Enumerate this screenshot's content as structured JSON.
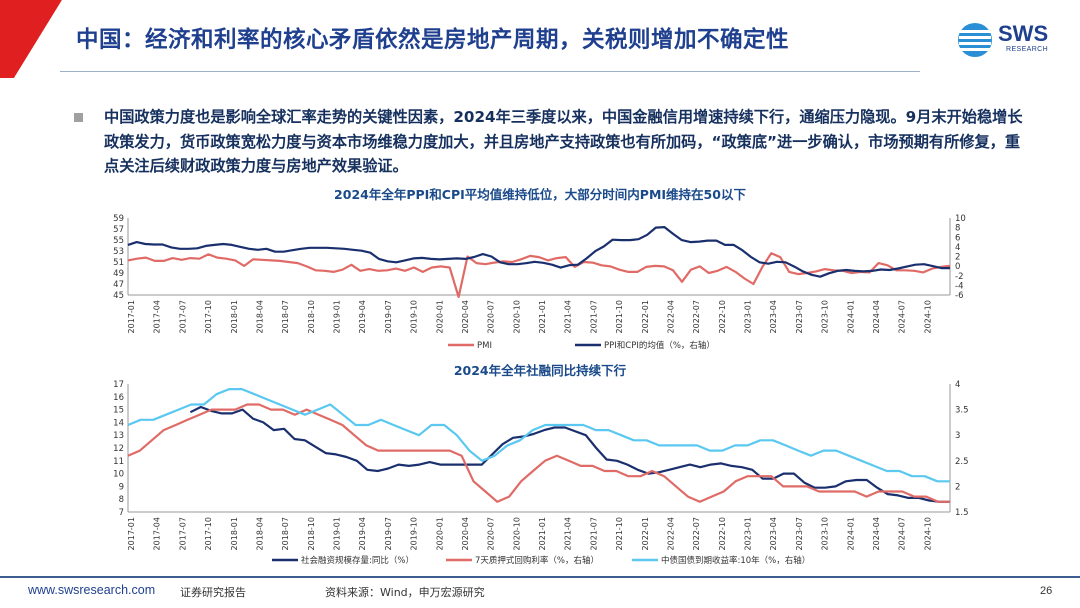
{
  "slide": {
    "title": "中国：经济和利率的核心矛盾依然是房地产周期，关税则增加不确定性",
    "logo_text": "SWS",
    "logo_sub": "RESEARCH",
    "paragraph": "中国政策力度也是影响全球汇率走势的关键性因素，2024年三季度以来，中国金融信用增速持续下行，通缩压力隐现。9月末开始稳增长政策发力，货币政策宽松力度与资本市场维稳力度加大，并且房地产支持政策也有所加码，“政策底”进一步确认，市场预期有所修复，重点关注后续财政政策力度与房地产效果验证。",
    "footer": {
      "url": "www.swsresearch.com",
      "doc_type": "证券研究报告",
      "source": "资料来源：Wind，申万宏源研究",
      "page": "26"
    },
    "colors": {
      "navy": "#1f3f8f",
      "red": "#e06b66",
      "darkblue": "#1a2f6e",
      "lightblue": "#5ac8f0"
    }
  },
  "chart_data": [
    {
      "type": "line",
      "title": "2024年全年PPI和CPI平均值维持低位，大部分时间内PMI维持在50以下",
      "x_labels": [
        "2017-01",
        "2017-04",
        "2017-07",
        "2017-10",
        "2018-01",
        "2018-04",
        "2018-07",
        "2018-10",
        "2019-01",
        "2019-04",
        "2019-07",
        "2019-10",
        "2020-01",
        "2020-04",
        "2020-07",
        "2020-10",
        "2021-01",
        "2021-04",
        "2021-07",
        "2021-10",
        "2022-01",
        "2022-04",
        "2022-07",
        "2022-10",
        "2023-01",
        "2023-04",
        "2023-07",
        "2023-10",
        "2024-01",
        "2024-04",
        "2024-07",
        "2024-10"
      ],
      "y_left": {
        "range": [
          45,
          59
        ],
        "ticks": [
          45,
          47,
          49,
          51,
          53,
          55,
          57,
          59
        ]
      },
      "y_right": {
        "range": [
          -6,
          10
        ],
        "ticks": [
          -6,
          -4,
          -2,
          0,
          2,
          4,
          6,
          8,
          10
        ]
      },
      "series": [
        {
          "name": "PMI",
          "axis": "left",
          "color": "#e06b66",
          "values": [
            51.3,
            51.6,
            51.8,
            51.2,
            51.2,
            51.7,
            51.4,
            51.7,
            51.6,
            52.4,
            51.8,
            51.6,
            51.3,
            50.3,
            51.5,
            51.4,
            51.3,
            51.2,
            51.0,
            50.8,
            50.2,
            49.5,
            49.4,
            49.2,
            49.6,
            50.5,
            49.4,
            49.7,
            49.4,
            49.5,
            49.8,
            49.4,
            50.0,
            49.2,
            50.0,
            50.2,
            50.0,
            35.7,
            52.0,
            50.8,
            50.6,
            50.9,
            51.1,
            51.0,
            51.5,
            52.1,
            51.9,
            51.3,
            51.7,
            51.9,
            50.1,
            51.0,
            50.9,
            50.4,
            50.2,
            49.6,
            49.2,
            49.2,
            50.1,
            50.3,
            50.2,
            49.5,
            47.4,
            49.6,
            50.2,
            49.0,
            49.4,
            50.1,
            49.2,
            48.0,
            47.0,
            50.1,
            52.6,
            51.9,
            49.2,
            48.8,
            49.0,
            49.3,
            49.7,
            49.5,
            49.4,
            49.0,
            49.2,
            49.1,
            50.8,
            50.4,
            49.5,
            49.5,
            49.4,
            49.1,
            49.8,
            50.1,
            50.3
          ]
        },
        {
          "name": "PPI和CPI的均值（%，右轴）",
          "axis": "right",
          "color": "#1a2f6e",
          "values": [
            4.4,
            5.0,
            4.6,
            4.5,
            4.5,
            3.9,
            3.6,
            3.6,
            3.7,
            4.2,
            4.4,
            4.6,
            4.4,
            4.0,
            3.6,
            3.4,
            3.6,
            3.0,
            3.0,
            3.3,
            3.6,
            3.8,
            3.8,
            3.8,
            3.7,
            3.6,
            3.4,
            3.2,
            2.8,
            1.5,
            1.0,
            0.8,
            1.2,
            1.6,
            1.7,
            1.5,
            1.4,
            1.5,
            1.6,
            1.5,
            1.9,
            2.5,
            2.0,
            0.8,
            0.4,
            0.4,
            0.6,
            0.9,
            0.7,
            0.3,
            -0.3,
            0.2,
            0.3,
            1.6,
            3.1,
            4.1,
            5.5,
            5.4,
            5.4,
            5.6,
            6.5,
            8.0,
            8.1,
            6.7,
            5.4,
            5.0,
            5.1,
            5.3,
            5.3,
            4.4,
            4.4,
            3.3,
            1.9,
            0.8,
            0.5,
            0.9,
            0.8,
            -0.1,
            -1.1,
            -1.8,
            -2.2,
            -1.5,
            -1.0,
            -0.8,
            -1.0,
            -1.1,
            -1.0,
            -0.7,
            -0.8,
            -0.5,
            -0.1,
            0.3,
            0.4,
            0.0,
            -0.4,
            -0.4
          ]
        }
      ],
      "legend": "bottom"
    },
    {
      "type": "line",
      "title": "2024年全年社融同比持续下行",
      "x_labels": [
        "2017-01",
        "2017-04",
        "2017-07",
        "2017-10",
        "2018-01",
        "2018-04",
        "2018-07",
        "2018-10",
        "2019-01",
        "2019-04",
        "2019-07",
        "2019-10",
        "2020-01",
        "2020-04",
        "2020-07",
        "2020-10",
        "2021-01",
        "2021-04",
        "2021-07",
        "2021-10",
        "2022-01",
        "2022-04",
        "2022-07",
        "2022-10",
        "2023-01",
        "2023-04",
        "2023-07",
        "2023-10",
        "2024-01",
        "2024-04",
        "2024-07",
        "2024-10"
      ],
      "y_left": {
        "range": [
          7,
          17
        ],
        "ticks": [
          7,
          8,
          9,
          10,
          11,
          12,
          13,
          14,
          15,
          16,
          17
        ]
      },
      "y_right": {
        "range": [
          1.5,
          4
        ],
        "ticks": [
          1.5,
          2,
          2.5,
          3,
          3.5,
          4
        ]
      },
      "series": [
        {
          "name": "社会融资规模存量:同比（%）",
          "axis": "left",
          "color": "#1a2f6e",
          "values": [
            null,
            null,
            null,
            null,
            null,
            null,
            14.8,
            15.2,
            14.9,
            14.7,
            14.7,
            15.0,
            14.3,
            14.0,
            13.4,
            13.5,
            12.7,
            12.6,
            12.1,
            11.6,
            11.5,
            11.3,
            11.0,
            10.3,
            10.2,
            10.4,
            10.7,
            10.6,
            10.7,
            10.9,
            10.7,
            10.7,
            10.7,
            10.7,
            10.7,
            11.5,
            12.3,
            12.8,
            12.9,
            13.1,
            13.4,
            13.6,
            13.6,
            13.3,
            13.0,
            12.0,
            11.1,
            11.0,
            10.7,
            10.3,
            10.0,
            10.1,
            10.3,
            10.5,
            10.7,
            10.5,
            10.7,
            10.8,
            10.6,
            10.5,
            10.3,
            9.6,
            9.6,
            10.0,
            10.0,
            9.3,
            8.9,
            8.9,
            9.0,
            9.4,
            9.5,
            9.5,
            8.9,
            8.4,
            8.3,
            8.1,
            8.1,
            7.9,
            7.8,
            7.8
          ]
        },
        {
          "name": "7天质押式回购利率（%，右轴）",
          "axis": "right",
          "color": "#e06b66",
          "values": [
            2.6,
            2.7,
            2.9,
            3.1,
            3.2,
            3.3,
            3.4,
            3.5,
            3.5,
            3.5,
            3.6,
            3.6,
            3.5,
            3.5,
            3.4,
            3.5,
            3.4,
            3.3,
            3.2,
            3.0,
            2.8,
            2.7,
            2.7,
            2.7,
            2.7,
            2.7,
            2.7,
            2.7,
            2.6,
            2.1,
            1.9,
            1.7,
            1.8,
            2.1,
            2.3,
            2.5,
            2.6,
            2.5,
            2.4,
            2.4,
            2.3,
            2.3,
            2.2,
            2.2,
            2.3,
            2.2,
            2.0,
            1.8,
            1.7,
            1.8,
            1.9,
            2.1,
            2.2,
            2.2,
            2.2,
            2.0,
            2.0,
            2.0,
            1.9,
            1.9,
            1.9,
            1.9,
            1.8,
            1.9,
            1.9,
            1.9,
            1.8,
            1.8,
            1.7,
            1.7
          ]
        },
        {
          "name": "中债国债到期收益率:10年（%，右轴）",
          "axis": "right",
          "color": "#5ac8f0",
          "values": [
            3.2,
            3.3,
            3.3,
            3.4,
            3.5,
            3.6,
            3.6,
            3.8,
            3.9,
            3.9,
            3.8,
            3.7,
            3.6,
            3.5,
            3.4,
            3.5,
            3.6,
            3.4,
            3.2,
            3.2,
            3.3,
            3.2,
            3.1,
            3.0,
            3.2,
            3.2,
            3.0,
            2.7,
            2.5,
            2.6,
            2.8,
            2.9,
            3.1,
            3.2,
            3.2,
            3.2,
            3.2,
            3.1,
            3.1,
            3.0,
            2.9,
            2.9,
            2.8,
            2.8,
            2.8,
            2.8,
            2.7,
            2.7,
            2.8,
            2.8,
            2.9,
            2.9,
            2.8,
            2.7,
            2.6,
            2.7,
            2.7,
            2.6,
            2.5,
            2.4,
            2.3,
            2.3,
            2.2,
            2.2,
            2.1,
            2.1
          ]
        }
      ],
      "legend": "bottom"
    }
  ]
}
